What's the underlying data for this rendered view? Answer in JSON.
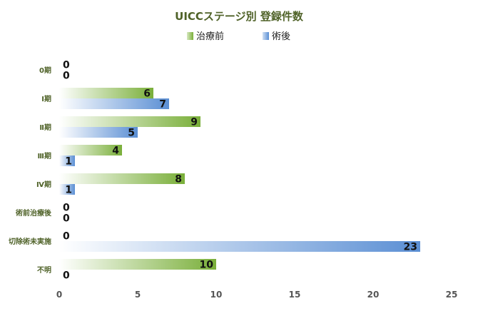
{
  "chart_data": {
    "type": "bar",
    "orientation": "horizontal",
    "title": "UICCステージ別 登録件数",
    "categories": [
      "0期",
      "Ⅰ期",
      "Ⅱ期",
      "Ⅲ期",
      "Ⅳ期",
      "術前治療後",
      "切除術未実施",
      "不明"
    ],
    "series": [
      {
        "name": "治療前",
        "color": "#7aaf3a",
        "values": [
          0,
          6,
          9,
          4,
          8,
          0,
          0,
          10
        ]
      },
      {
        "name": "術後",
        "color": "#5b8fd4",
        "values": [
          0,
          7,
          5,
          1,
          1,
          0,
          23,
          0
        ]
      }
    ],
    "xlim": [
      0,
      25
    ],
    "xticks": [
      "0",
      "5",
      "10",
      "15",
      "20",
      "25"
    ],
    "legend_position": "top",
    "grid": false
  }
}
